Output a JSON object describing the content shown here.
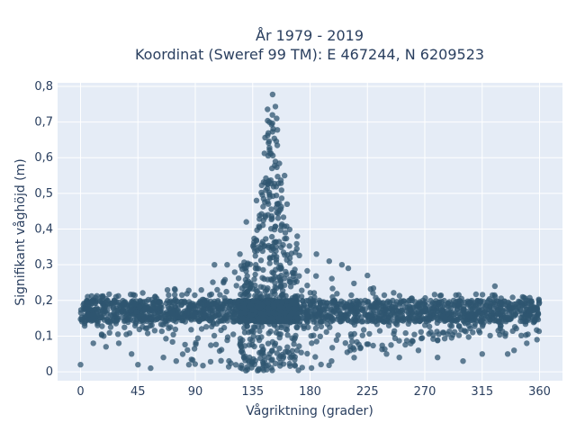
{
  "chart_data": {
    "type": "scatter",
    "title": "År 1979 - 2019",
    "subtitle": "Koordinat (Sweref 99 TM): E 467244, N 6209523",
    "xlabel": "Vågriktning (grader)",
    "ylabel": "Signifikant våghöjd (m)",
    "xlim": [
      -18,
      378
    ],
    "ylim": [
      -0.025,
      0.81
    ],
    "xticks": [
      0,
      45,
      90,
      135,
      180,
      225,
      270,
      315,
      360
    ],
    "xtick_labels": [
      "0",
      "45",
      "90",
      "135",
      "180",
      "225",
      "270",
      "315",
      "360"
    ],
    "yticks": [
      0,
      0.1,
      0.2,
      0.3,
      0.4,
      0.5,
      0.6,
      0.7,
      0.8
    ],
    "ytick_labels": [
      "0",
      "0,1",
      "0,2",
      "0,3",
      "0,4",
      "0,5",
      "0,6",
      "0,7",
      "0,8"
    ],
    "grid": true,
    "marker_color": "#2f5670",
    "background": "#e5ecf6",
    "density_envelope": {
      "x": [
        0,
        10,
        30,
        60,
        90,
        110,
        120,
        130,
        135,
        140,
        143,
        145,
        147,
        149,
        150,
        151,
        153,
        155,
        158,
        162,
        168,
        175,
        180,
        200,
        225,
        270,
        315,
        360
      ],
      "lower": [
        0.1,
        0.1,
        0.1,
        0.1,
        0.02,
        0.01,
        0.01,
        0.0,
        0.0,
        0.0,
        0.0,
        0.0,
        0.0,
        0.0,
        0.0,
        0.0,
        0.0,
        0.0,
        0.0,
        0.0,
        0.0,
        0.0,
        0.01,
        0.02,
        0.05,
        0.08,
        0.1,
        0.1
      ],
      "upper": [
        0.21,
        0.22,
        0.22,
        0.23,
        0.24,
        0.26,
        0.28,
        0.32,
        0.36,
        0.45,
        0.58,
        0.72,
        0.77,
        0.78,
        0.78,
        0.78,
        0.76,
        0.65,
        0.5,
        0.42,
        0.38,
        0.33,
        0.3,
        0.26,
        0.24,
        0.22,
        0.22,
        0.21
      ]
    },
    "sample_points": [
      {
        "x": 0,
        "y": 0.02
      },
      {
        "x": 10,
        "y": 0.08
      },
      {
        "x": 20,
        "y": 0.07
      },
      {
        "x": 30,
        "y": 0.08
      },
      {
        "x": 40,
        "y": 0.05
      },
      {
        "x": 45,
        "y": 0.02
      },
      {
        "x": 55,
        "y": 0.01
      },
      {
        "x": 65,
        "y": 0.04
      },
      {
        "x": 75,
        "y": 0.03
      },
      {
        "x": 85,
        "y": 0.02
      },
      {
        "x": 95,
        "y": 0.12
      },
      {
        "x": 105,
        "y": 0.3
      },
      {
        "x": 115,
        "y": 0.3
      },
      {
        "x": 125,
        "y": 0.33
      },
      {
        "x": 130,
        "y": 0.42
      },
      {
        "x": 138,
        "y": 0.48
      },
      {
        "x": 145,
        "y": 0.53
      },
      {
        "x": 160,
        "y": 0.55
      },
      {
        "x": 162,
        "y": 0.47
      },
      {
        "x": 170,
        "y": 0.38
      },
      {
        "x": 185,
        "y": 0.33
      },
      {
        "x": 195,
        "y": 0.31
      },
      {
        "x": 205,
        "y": 0.3
      },
      {
        "x": 210,
        "y": 0.29
      },
      {
        "x": 225,
        "y": 0.27
      },
      {
        "x": 240,
        "y": 0.05
      },
      {
        "x": 250,
        "y": 0.04
      },
      {
        "x": 265,
        "y": 0.06
      },
      {
        "x": 280,
        "y": 0.04
      },
      {
        "x": 300,
        "y": 0.03
      },
      {
        "x": 315,
        "y": 0.05
      },
      {
        "x": 325,
        "y": 0.24
      },
      {
        "x": 335,
        "y": 0.05
      },
      {
        "x": 340,
        "y": 0.06
      },
      {
        "x": 350,
        "y": 0.08
      },
      {
        "x": 358,
        "y": 0.09
      }
    ]
  }
}
